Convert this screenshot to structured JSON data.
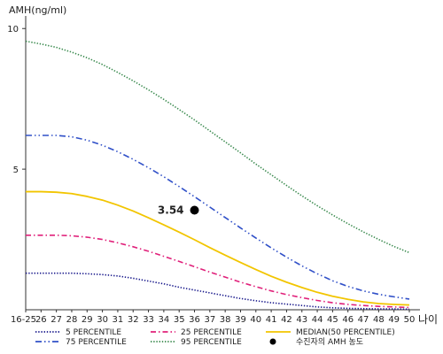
{
  "chart_data": {
    "type": "line",
    "ylabel": "AMH(ng/ml)",
    "xlabel": "나이",
    "ylim": [
      0,
      10.7
    ],
    "yticks": [
      5,
      10
    ],
    "x_tick_labels": [
      "16-25",
      "26",
      "27",
      "28",
      "29",
      "30",
      "31",
      "32",
      "33",
      "34",
      "35",
      "36",
      "37",
      "38",
      "39",
      "40",
      "41",
      "42",
      "43",
      "44",
      "45",
      "46",
      "47",
      "48",
      "49",
      "50"
    ],
    "grid": false,
    "legend_position": "bottom",
    "series": [
      {
        "name": "5 PERCENTILE",
        "color": "#1a1a8c",
        "style": "dotted",
        "x": [
          25,
          26,
          27,
          28,
          29,
          30,
          31,
          32,
          33,
          34,
          35,
          36,
          37,
          38,
          39,
          40,
          41,
          42,
          43,
          44,
          45,
          46,
          47,
          48,
          49,
          50
        ],
        "y": [
          1.3,
          1.3,
          1.3,
          1.3,
          1.28,
          1.25,
          1.2,
          1.12,
          1.02,
          0.92,
          0.8,
          0.7,
          0.6,
          0.5,
          0.4,
          0.32,
          0.25,
          0.2,
          0.15,
          0.1,
          0.07,
          0.05,
          0.04,
          0.03,
          0.03,
          0.02
        ]
      },
      {
        "name": "25 PERCENTILE",
        "color": "#e0207a",
        "style": "dashdot",
        "x": [
          25,
          26,
          27,
          28,
          29,
          30,
          31,
          32,
          33,
          34,
          35,
          36,
          37,
          38,
          39,
          40,
          41,
          42,
          43,
          44,
          45,
          46,
          47,
          48,
          49,
          50
        ],
        "y": [
          2.65,
          2.65,
          2.65,
          2.63,
          2.58,
          2.5,
          2.38,
          2.24,
          2.08,
          1.9,
          1.72,
          1.53,
          1.34,
          1.16,
          0.98,
          0.82,
          0.67,
          0.54,
          0.43,
          0.33,
          0.25,
          0.19,
          0.15,
          0.12,
          0.1,
          0.08
        ]
      },
      {
        "name": "MEDIAN(50 PERCENTILE)",
        "color": "#f2c500",
        "style": "solid",
        "x": [
          25,
          26,
          27,
          28,
          29,
          30,
          31,
          32,
          33,
          34,
          35,
          36,
          37,
          38,
          39,
          40,
          41,
          42,
          43,
          44,
          45,
          46,
          47,
          48,
          49,
          50
        ],
        "y": [
          4.2,
          4.2,
          4.18,
          4.13,
          4.03,
          3.9,
          3.72,
          3.51,
          3.27,
          3.02,
          2.76,
          2.49,
          2.21,
          1.94,
          1.68,
          1.43,
          1.19,
          0.98,
          0.79,
          0.62,
          0.48,
          0.37,
          0.28,
          0.22,
          0.19,
          0.17
        ]
      },
      {
        "name": "75 PERCENTILE",
        "color": "#3050c8",
        "style": "dashdotdot",
        "x": [
          25,
          26,
          27,
          28,
          29,
          30,
          31,
          32,
          33,
          34,
          35,
          36,
          37,
          38,
          39,
          40,
          41,
          42,
          43,
          44,
          45,
          46,
          47,
          48,
          49,
          50
        ],
        "y": [
          6.2,
          6.2,
          6.2,
          6.15,
          6.03,
          5.85,
          5.62,
          5.35,
          5.05,
          4.73,
          4.38,
          4.02,
          3.65,
          3.28,
          2.91,
          2.55,
          2.2,
          1.87,
          1.56,
          1.28,
          1.03,
          0.83,
          0.67,
          0.55,
          0.46,
          0.38
        ]
      },
      {
        "name": "95 PERCENTILE",
        "color": "#3a8a4e",
        "style": "dotted",
        "x": [
          25,
          26,
          27,
          28,
          29,
          30,
          31,
          32,
          33,
          34,
          35,
          36,
          37,
          38,
          39,
          40,
          41,
          42,
          43,
          44,
          45,
          46,
          47,
          48,
          49,
          50
        ],
        "y": [
          9.55,
          9.45,
          9.33,
          9.16,
          8.96,
          8.72,
          8.44,
          8.14,
          7.82,
          7.48,
          7.12,
          6.75,
          6.36,
          5.97,
          5.58,
          5.18,
          4.8,
          4.42,
          4.05,
          3.7,
          3.37,
          3.06,
          2.77,
          2.5,
          2.25,
          2.03
        ]
      }
    ],
    "points": [
      {
        "name": "수진자의 AMH 농도",
        "x": 36,
        "y": 3.54,
        "label": "3.54",
        "color": "#000000"
      }
    ],
    "legend_columns": [
      [
        "5 PERCENTILE",
        "75 PERCENTILE"
      ],
      [
        "25 PERCENTILE",
        "95 PERCENTILE"
      ],
      [
        "MEDIAN(50 PERCENTILE)",
        "수진자의 AMH 농도"
      ]
    ]
  }
}
